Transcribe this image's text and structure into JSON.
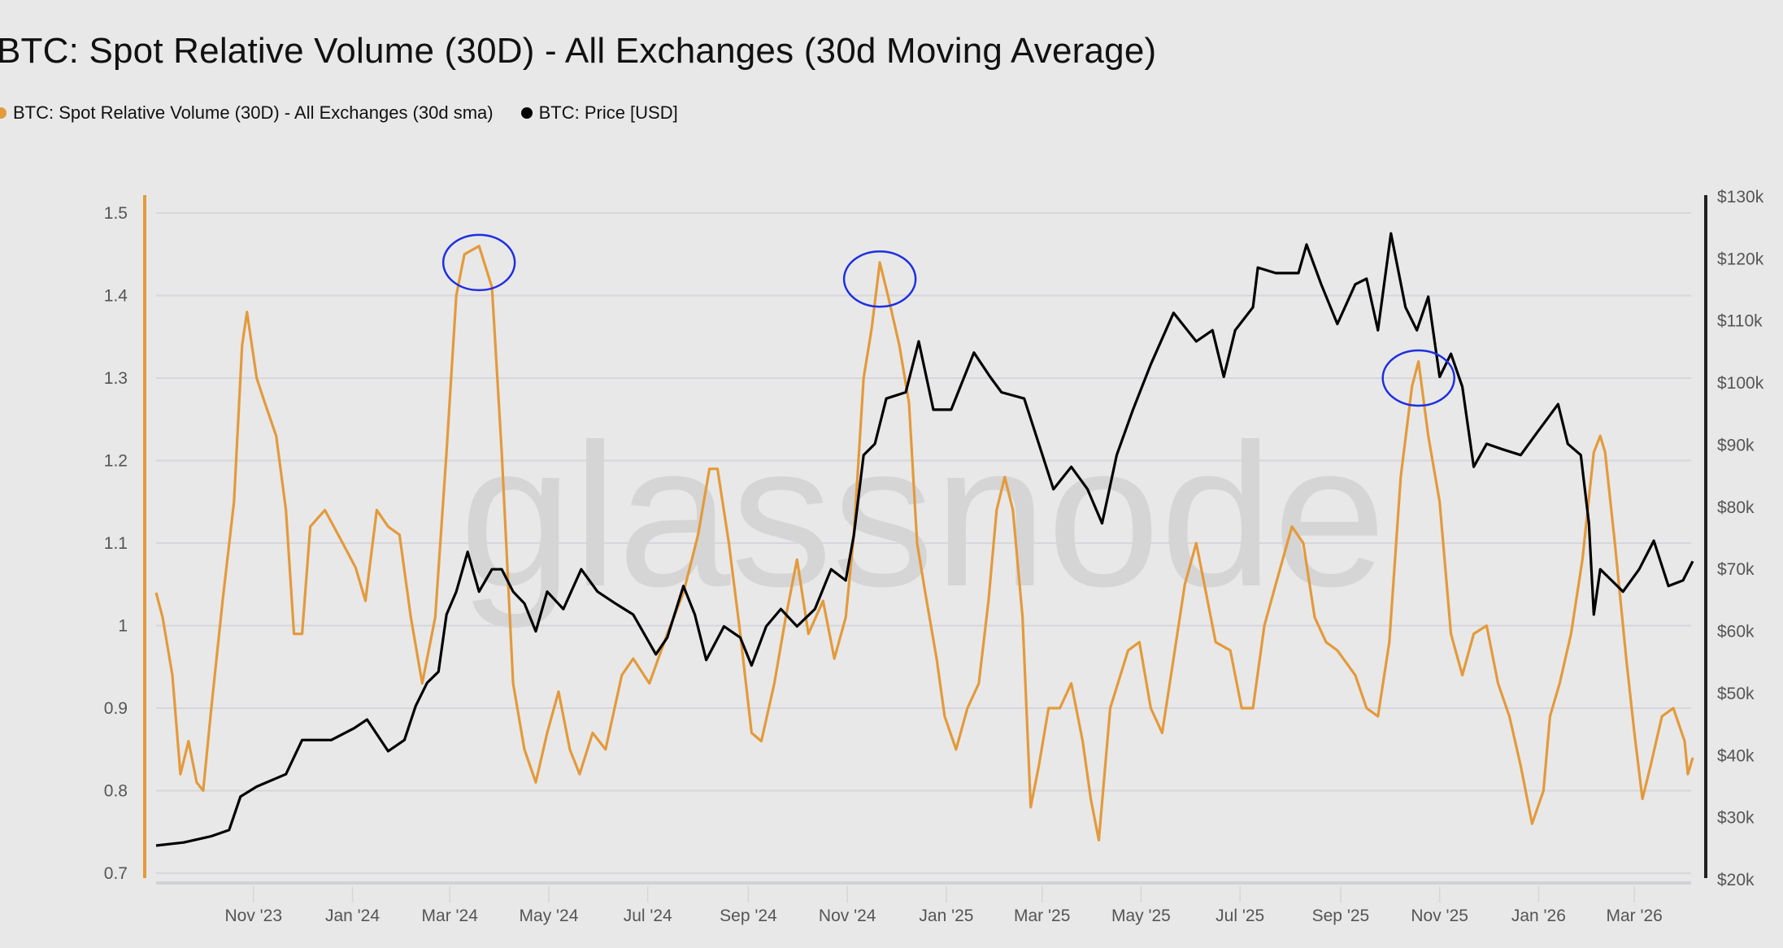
{
  "chart_data": {
    "type": "line",
    "title": "BTC: Spot Relative Volume (30D) - All Exchanges (30d Moving Average)",
    "legend_placement": "top-left",
    "grid": true,
    "watermark": "glassnode",
    "x_ticks": [
      "Nov '23",
      "Jan '24",
      "Mar '24",
      "May '24",
      "Jul '24",
      "Sep '24",
      "Nov '24",
      "Jan '25",
      "Mar '25",
      "May '25",
      "Jul '25",
      "Sep '25",
      "Nov '25",
      "Jan '26",
      "Mar '26"
    ],
    "x_tick_dates": [
      "2023-11-01",
      "2024-01-01",
      "2024-03-01",
      "2024-05-01",
      "2024-07-01",
      "2024-09-01",
      "2024-11-01",
      "2025-01-01",
      "2025-03-01",
      "2025-05-01",
      "2025-07-01",
      "2025-09-01",
      "2025-11-01",
      "2026-01-01",
      "2026-03-01"
    ],
    "xlim": [
      "2023-09-02",
      "2026-04-06"
    ],
    "y_left": {
      "ticks": [
        "0.7",
        "0.8",
        "0.9",
        "1",
        "1.1",
        "1.2",
        "1.3",
        "1.4",
        "1.5"
      ],
      "ylim": [
        0.7,
        1.5
      ]
    },
    "y_right": {
      "ticks": [
        "$20k",
        "$30k",
        "$40k",
        "$50k",
        "$60k",
        "$70k",
        "$80k",
        "$90k",
        "$100k",
        "$110k",
        "$120k",
        "$130k"
      ],
      "ylim": [
        20,
        130
      ],
      "unit": "USD thousands"
    },
    "series": [
      {
        "name": "BTC: Spot Relative Volume (30D) - All Exchanges (30d sma)",
        "color": "#e39a3b",
        "axis": "left",
        "points": [
          [
            "2023-09-02",
            1.04
          ],
          [
            "2023-09-06",
            1.01
          ],
          [
            "2023-09-12",
            0.94
          ],
          [
            "2023-09-17",
            0.82
          ],
          [
            "2023-09-22",
            0.86
          ],
          [
            "2023-09-27",
            0.81
          ],
          [
            "2023-10-01",
            0.8
          ],
          [
            "2023-10-06",
            0.9
          ],
          [
            "2023-10-13",
            1.03
          ],
          [
            "2023-10-20",
            1.15
          ],
          [
            "2023-10-25",
            1.34
          ],
          [
            "2023-10-28",
            1.38
          ],
          [
            "2023-11-03",
            1.3
          ],
          [
            "2023-11-08",
            1.27
          ],
          [
            "2023-11-15",
            1.23
          ],
          [
            "2023-11-21",
            1.14
          ],
          [
            "2023-11-26",
            0.99
          ],
          [
            "2023-12-01",
            0.99
          ],
          [
            "2023-12-06",
            1.12
          ],
          [
            "2023-12-15",
            1.14
          ],
          [
            "2023-12-26",
            1.1
          ],
          [
            "2024-01-03",
            1.07
          ],
          [
            "2024-01-09",
            1.03
          ],
          [
            "2024-01-16",
            1.14
          ],
          [
            "2024-01-23",
            1.12
          ],
          [
            "2024-01-30",
            1.11
          ],
          [
            "2024-02-06",
            1.01
          ],
          [
            "2024-02-13",
            0.93
          ],
          [
            "2024-02-21",
            1.01
          ],
          [
            "2024-02-28",
            1.21
          ],
          [
            "2024-03-05",
            1.4
          ],
          [
            "2024-03-10",
            1.45
          ],
          [
            "2024-03-19",
            1.46
          ],
          [
            "2024-03-27",
            1.41
          ],
          [
            "2024-04-02",
            1.21
          ],
          [
            "2024-04-09",
            0.93
          ],
          [
            "2024-04-16",
            0.85
          ],
          [
            "2024-04-23",
            0.81
          ],
          [
            "2024-04-30",
            0.87
          ],
          [
            "2024-05-07",
            0.92
          ],
          [
            "2024-05-14",
            0.85
          ],
          [
            "2024-05-20",
            0.82
          ],
          [
            "2024-05-28",
            0.87
          ],
          [
            "2024-06-05",
            0.85
          ],
          [
            "2024-06-15",
            0.94
          ],
          [
            "2024-06-22",
            0.96
          ],
          [
            "2024-07-02",
            0.93
          ],
          [
            "2024-07-13",
            0.99
          ],
          [
            "2024-07-23",
            1.04
          ],
          [
            "2024-08-01",
            1.11
          ],
          [
            "2024-08-08",
            1.19
          ],
          [
            "2024-08-13",
            1.19
          ],
          [
            "2024-08-20",
            1.1
          ],
          [
            "2024-08-27",
            0.99
          ],
          [
            "2024-09-03",
            0.87
          ],
          [
            "2024-09-09",
            0.86
          ],
          [
            "2024-09-17",
            0.93
          ],
          [
            "2024-09-24",
            1.01
          ],
          [
            "2024-10-01",
            1.08
          ],
          [
            "2024-10-08",
            0.99
          ],
          [
            "2024-10-17",
            1.03
          ],
          [
            "2024-10-24",
            0.96
          ],
          [
            "2024-10-31",
            1.01
          ],
          [
            "2024-11-05",
            1.11
          ],
          [
            "2024-11-11",
            1.3
          ],
          [
            "2024-11-16",
            1.36
          ],
          [
            "2024-11-21",
            1.44
          ],
          [
            "2024-11-26",
            1.4
          ],
          [
            "2024-12-03",
            1.34
          ],
          [
            "2024-12-09",
            1.27
          ],
          [
            "2024-12-14",
            1.1
          ],
          [
            "2024-12-19",
            1.04
          ],
          [
            "2024-12-26",
            0.96
          ],
          [
            "2024-12-31",
            0.89
          ],
          [
            "2025-01-07",
            0.85
          ],
          [
            "2025-01-14",
            0.9
          ],
          [
            "2025-01-21",
            0.93
          ],
          [
            "2025-01-27",
            1.03
          ],
          [
            "2025-02-01",
            1.14
          ],
          [
            "2025-02-06",
            1.18
          ],
          [
            "2025-02-11",
            1.14
          ],
          [
            "2025-02-17",
            1.01
          ],
          [
            "2025-02-22",
            0.78
          ],
          [
            "2025-02-27",
            0.83
          ],
          [
            "2025-03-05",
            0.9
          ],
          [
            "2025-03-12",
            0.9
          ],
          [
            "2025-03-19",
            0.93
          ],
          [
            "2025-03-26",
            0.86
          ],
          [
            "2025-03-31",
            0.79
          ],
          [
            "2025-04-05",
            0.74
          ],
          [
            "2025-04-12",
            0.9
          ],
          [
            "2025-04-23",
            0.97
          ],
          [
            "2025-04-30",
            0.98
          ],
          [
            "2025-05-07",
            0.9
          ],
          [
            "2025-05-14",
            0.87
          ],
          [
            "2025-05-21",
            0.96
          ],
          [
            "2025-05-28",
            1.05
          ],
          [
            "2025-06-04",
            1.1
          ],
          [
            "2025-06-09",
            1.05
          ],
          [
            "2025-06-16",
            0.98
          ],
          [
            "2025-06-25",
            0.97
          ],
          [
            "2025-07-02",
            0.9
          ],
          [
            "2025-07-09",
            0.9
          ],
          [
            "2025-07-16",
            1.0
          ],
          [
            "2025-07-23",
            1.05
          ],
          [
            "2025-08-02",
            1.12
          ],
          [
            "2025-08-09",
            1.1
          ],
          [
            "2025-08-16",
            1.01
          ],
          [
            "2025-08-23",
            0.98
          ],
          [
            "2025-08-30",
            0.97
          ],
          [
            "2025-09-10",
            0.94
          ],
          [
            "2025-09-17",
            0.9
          ],
          [
            "2025-09-24",
            0.89
          ],
          [
            "2025-10-01",
            0.98
          ],
          [
            "2025-10-08",
            1.18
          ],
          [
            "2025-10-15",
            1.29
          ],
          [
            "2025-10-19",
            1.32
          ],
          [
            "2025-10-25",
            1.23
          ],
          [
            "2025-11-01",
            1.15
          ],
          [
            "2025-11-08",
            0.99
          ],
          [
            "2025-11-15",
            0.94
          ],
          [
            "2025-11-22",
            0.99
          ],
          [
            "2025-11-30",
            1.0
          ],
          [
            "2025-12-07",
            0.93
          ],
          [
            "2025-12-14",
            0.89
          ],
          [
            "2025-12-21",
            0.83
          ],
          [
            "2025-12-28",
            0.76
          ],
          [
            "2026-01-04",
            0.8
          ],
          [
            "2026-01-08",
            0.89
          ],
          [
            "2026-01-14",
            0.93
          ],
          [
            "2026-01-21",
            0.99
          ],
          [
            "2026-01-28",
            1.08
          ],
          [
            "2026-02-04",
            1.21
          ],
          [
            "2026-02-08",
            1.23
          ],
          [
            "2026-02-11",
            1.21
          ],
          [
            "2026-02-17",
            1.1
          ],
          [
            "2026-02-24",
            0.96
          ],
          [
            "2026-03-01",
            0.87
          ],
          [
            "2026-03-06",
            0.79
          ],
          [
            "2026-03-11",
            0.83
          ],
          [
            "2026-03-18",
            0.89
          ],
          [
            "2026-03-25",
            0.9
          ],
          [
            "2026-04-01",
            0.86
          ],
          [
            "2026-04-03",
            0.82
          ],
          [
            "2026-04-06",
            0.84
          ]
        ]
      },
      {
        "name": "BTC: Price [USD]",
        "color": "#000000",
        "axis": "right",
        "points": [
          [
            "2023-09-02",
            25.5
          ],
          [
            "2023-09-19",
            26
          ],
          [
            "2023-10-06",
            27
          ],
          [
            "2023-10-17",
            28
          ],
          [
            "2023-10-24",
            33.4
          ],
          [
            "2023-11-03",
            35
          ],
          [
            "2023-11-21",
            37
          ],
          [
            "2023-12-01",
            42.5
          ],
          [
            "2023-12-19",
            42.5
          ],
          [
            "2024-01-02",
            44.4
          ],
          [
            "2024-01-10",
            45.8
          ],
          [
            "2024-01-23",
            40.7
          ],
          [
            "2024-02-02",
            42.5
          ],
          [
            "2024-02-09",
            48
          ],
          [
            "2024-02-16",
            51.7
          ],
          [
            "2024-02-23",
            53.5
          ],
          [
            "2024-02-28",
            62.7
          ],
          [
            "2024-03-05",
            66.4
          ],
          [
            "2024-03-12",
            72.8
          ],
          [
            "2024-03-19",
            66.4
          ],
          [
            "2024-03-27",
            70
          ],
          [
            "2024-04-02",
            70
          ],
          [
            "2024-04-09",
            66.4
          ],
          [
            "2024-04-16",
            64.5
          ],
          [
            "2024-04-23",
            60
          ],
          [
            "2024-04-30",
            66.4
          ],
          [
            "2024-05-10",
            63.6
          ],
          [
            "2024-05-21",
            70
          ],
          [
            "2024-05-31",
            66.4
          ],
          [
            "2024-06-11",
            64.5
          ],
          [
            "2024-06-22",
            62.7
          ],
          [
            "2024-07-06",
            56.3
          ],
          [
            "2024-07-13",
            59
          ],
          [
            "2024-07-23",
            67.3
          ],
          [
            "2024-07-30",
            62.7
          ],
          [
            "2024-08-06",
            55.4
          ],
          [
            "2024-08-17",
            60.8
          ],
          [
            "2024-08-27",
            59
          ],
          [
            "2024-09-03",
            54.5
          ],
          [
            "2024-09-12",
            60.8
          ],
          [
            "2024-09-21",
            63.6
          ],
          [
            "2024-10-01",
            60.8
          ],
          [
            "2024-10-12",
            63.6
          ],
          [
            "2024-10-22",
            70
          ],
          [
            "2024-10-31",
            68.2
          ],
          [
            "2024-11-05",
            75.5
          ],
          [
            "2024-11-11",
            88.4
          ],
          [
            "2024-11-18",
            90.2
          ],
          [
            "2024-11-25",
            97.5
          ],
          [
            "2024-12-07",
            98.5
          ],
          [
            "2024-12-15",
            106.7
          ],
          [
            "2024-12-24",
            95.7
          ],
          [
            "2025-01-04",
            95.7
          ],
          [
            "2025-01-18",
            104.9
          ],
          [
            "2025-01-28",
            101
          ],
          [
            "2025-02-04",
            98.5
          ],
          [
            "2025-02-18",
            97.5
          ],
          [
            "2025-02-27",
            90.2
          ],
          [
            "2025-03-08",
            82.9
          ],
          [
            "2025-03-19",
            86.5
          ],
          [
            "2025-03-29",
            82.9
          ],
          [
            "2025-04-07",
            77.4
          ],
          [
            "2025-04-16",
            88.4
          ],
          [
            "2025-04-26",
            95.7
          ],
          [
            "2025-05-07",
            103
          ],
          [
            "2025-05-21",
            111.3
          ],
          [
            "2025-06-04",
            106.7
          ],
          [
            "2025-06-14",
            108.5
          ],
          [
            "2025-06-21",
            101
          ],
          [
            "2025-06-28",
            108.5
          ],
          [
            "2025-07-09",
            112.2
          ],
          [
            "2025-07-12",
            118.6
          ],
          [
            "2025-07-23",
            117.7
          ],
          [
            "2025-08-06",
            117.7
          ],
          [
            "2025-08-11",
            122.3
          ],
          [
            "2025-08-20",
            115.9
          ],
          [
            "2025-08-30",
            109.5
          ],
          [
            "2025-09-10",
            115.9
          ],
          [
            "2025-09-17",
            116.8
          ],
          [
            "2025-09-24",
            108.5
          ],
          [
            "2025-10-02",
            124.1
          ],
          [
            "2025-10-11",
            112.2
          ],
          [
            "2025-10-18",
            108.5
          ],
          [
            "2025-10-25",
            113.9
          ],
          [
            "2025-11-01",
            101
          ],
          [
            "2025-11-08",
            104.7
          ],
          [
            "2025-11-15",
            99.4
          ],
          [
            "2025-11-22",
            86.5
          ],
          [
            "2025-11-30",
            90.2
          ],
          [
            "2025-12-10",
            89.3
          ],
          [
            "2025-12-21",
            88.4
          ],
          [
            "2025-12-31",
            92
          ],
          [
            "2026-01-13",
            96.6
          ],
          [
            "2026-01-19",
            90.2
          ],
          [
            "2026-01-27",
            88.4
          ],
          [
            "2026-02-01",
            77.4
          ],
          [
            "2026-02-04",
            62.7
          ],
          [
            "2026-02-08",
            70
          ],
          [
            "2026-02-15",
            68.2
          ],
          [
            "2026-02-22",
            66.4
          ],
          [
            "2026-03-04",
            70
          ],
          [
            "2026-03-13",
            74.6
          ],
          [
            "2026-03-22",
            67.3
          ],
          [
            "2026-03-31",
            68.2
          ],
          [
            "2026-04-06",
            71.3
          ]
        ]
      }
    ],
    "annotations": [
      {
        "type": "circle",
        "color": "#1f2fe0",
        "date": "2024-03-19",
        "value": 1.44
      },
      {
        "type": "circle",
        "color": "#1f2fe0",
        "date": "2024-11-21",
        "value": 1.42
      },
      {
        "type": "circle",
        "color": "#1f2fe0",
        "date": "2025-10-19",
        "value": 1.3
      }
    ]
  }
}
